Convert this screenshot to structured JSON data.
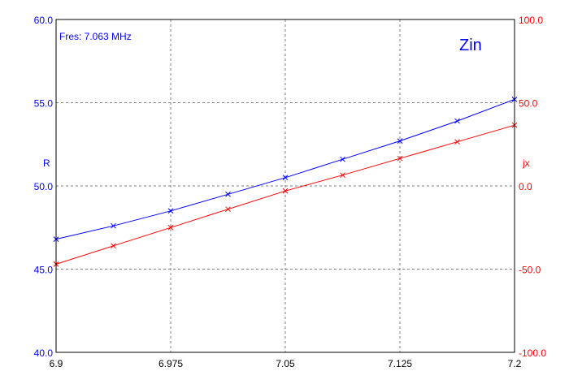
{
  "chart_data": {
    "type": "line",
    "annotation": "Fres: 7.063 MHz",
    "title": "Zin",
    "ylabel_left": "R",
    "ylabel_right": "jx",
    "x_ticks": [
      "6.9",
      "6.975",
      "7.05",
      "7.125",
      "7.2"
    ],
    "y_left_ticks": [
      "60.0",
      "55.0",
      "50.0",
      "45.0",
      "40.0"
    ],
    "y_right_ticks": [
      "100.0",
      "50.0",
      "0.0",
      "-50.0",
      "-100.0"
    ],
    "xlim": [
      6.9,
      7.2
    ],
    "ylim_left": [
      40,
      60
    ],
    "ylim_right": [
      -100,
      100
    ],
    "grid": true,
    "x": [
      6.9,
      6.9375,
      6.975,
      7.0125,
      7.05,
      7.0875,
      7.125,
      7.1625,
      7.2
    ],
    "series": [
      {
        "name": "R",
        "axis": "left",
        "color": "#0000ff",
        "values": [
          46.8,
          47.6,
          48.5,
          49.5,
          50.5,
          51.6,
          52.7,
          53.9,
          55.2
        ]
      },
      {
        "name": "jx",
        "axis": "right",
        "color": "#ff0000",
        "values": [
          -47.0,
          -36.0,
          -25.0,
          -14.0,
          -3.0,
          6.5,
          16.5,
          26.5,
          36.5
        ]
      }
    ],
    "colors": {
      "left_axis": "#0000ff",
      "right_axis": "#ff0000",
      "grid": "#808080",
      "frame": "#000000"
    }
  }
}
